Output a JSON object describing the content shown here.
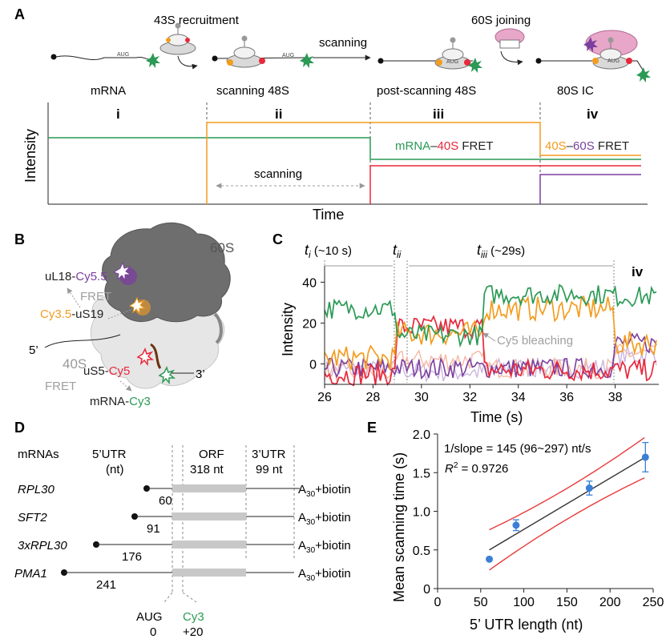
{
  "colors": {
    "green": "#2a9a55",
    "red": "#e8283c",
    "orange": "#f39c1f",
    "purple": "#7b3fa0",
    "gray": "#8c8c8c",
    "lavender": "#cbb6de",
    "pink": "#f6b9a3",
    "fitred": "#e83a3a",
    "blue": "#3b7fd6",
    "grayText": "#a0a0a0"
  },
  "panelA": {
    "letter": "A",
    "stage_labels": [
      "mRNA",
      "scanning 48S",
      "post-scanning 48S",
      "80S IC"
    ],
    "roman": [
      "i",
      "ii",
      "iii",
      "iv"
    ],
    "arrow_43s": "43S recruitment",
    "arrow_scanning": "scanning",
    "arrow_60s": "60S joining",
    "aug": "AUG",
    "ylabel": "Intensity",
    "xlabel": "Time",
    "scanning_label": "scanning",
    "fret1": {
      "a": "mRNA",
      "dash": "–",
      "b": "40S",
      "c": " FRET"
    },
    "fret2": {
      "a": "40S",
      "dash": "–",
      "b": "60S",
      "c": " FRET"
    }
  },
  "panelB": {
    "letter": "B",
    "sub60": "60S",
    "sub40": "40S",
    "uL18": {
      "a": "uL18-",
      "b": "Cy5.5"
    },
    "fret": "FRET",
    "uS19": {
      "a": "Cy3.5",
      "b": "-uS19"
    },
    "five": "5’",
    "three": "3’",
    "uS5": {
      "a": "uS5-",
      "b": "Cy5"
    },
    "fret2": "FRET",
    "mrnaCy3": {
      "a": "mRNA-",
      "b": "Cy3"
    }
  },
  "panelC": {
    "letter": "C",
    "ti": {
      "t": "t",
      "sub": "i",
      "rest": " (~10 s)"
    },
    "tii": {
      "t": "t",
      "sub": "ii"
    },
    "tiii": {
      "t": "t",
      "sub": "iii",
      "rest": " (~29s)"
    },
    "iv": "iv",
    "ylabel": "Intensity",
    "xlabel": "Time (s)",
    "bleach": "Cy5 bleaching",
    "xticks": [
      "26",
      "28",
      "30",
      "32",
      "34",
      "36",
      "38"
    ],
    "yticks": [
      "0",
      "20",
      "40"
    ]
  },
  "panelD": {
    "letter": "D",
    "h_mrnas": "mRNAs",
    "h_utr5": "5’UTR",
    "h_nt": "(nt)",
    "h_orf": "ORF",
    "h_orf_nt": "318 nt",
    "h_utr3": "3’UTR",
    "h_utr3_nt": "99 nt",
    "rows": [
      {
        "name": "RPL30",
        "len": "60"
      },
      {
        "name": "SFT2",
        "len": "91"
      },
      {
        "name": "3xRPL30",
        "len": "176"
      },
      {
        "name": "PMA1",
        "len": "241"
      }
    ],
    "tail_a": "A",
    "tail_sub": "30",
    "tail_rest": "+biotin",
    "aug": "AUG",
    "aug_pos": "0",
    "cy3": "Cy3",
    "cy3_pos": "+20"
  },
  "chart_data": {
    "type": "scatter",
    "letter": "E",
    "xlabel": "5’ UTR length (nt)",
    "ylabel": "Mean scanning time (s)",
    "xlim": [
      0,
      250
    ],
    "ylim": [
      0,
      2
    ],
    "xticks": [
      "0",
      "50",
      "100",
      "150",
      "200",
      "250"
    ],
    "yticks": [
      "0",
      "0.5",
      "1.0",
      "1.5",
      "2.0"
    ],
    "ann1": "1/slope = 145 (96~297) nt/s",
    "ann2_a": "R",
    "ann2_sup": "2",
    "ann2_rest": " = 0.9726",
    "points": [
      {
        "x": 60,
        "y": 0.38,
        "err": 0
      },
      {
        "x": 91,
        "y": 0.82,
        "err": 0.07
      },
      {
        "x": 176,
        "y": 1.3,
        "err": 0.09
      },
      {
        "x": 241,
        "y": 1.7,
        "err": 0.19
      }
    ],
    "fit": {
      "x": [
        60,
        241
      ],
      "y": [
        0.5,
        1.7
      ]
    }
  }
}
